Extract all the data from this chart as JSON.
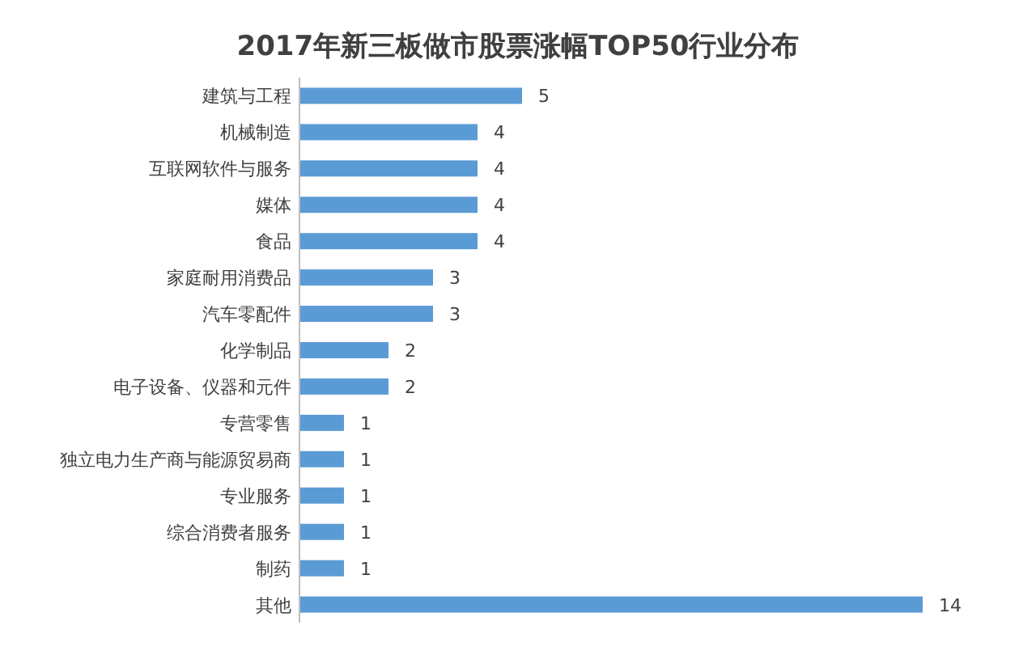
{
  "chart_data": {
    "type": "bar",
    "orientation": "horizontal",
    "title": "2017年新三板做市股票涨幅TOP50行业分布",
    "categories": [
      "建筑与工程",
      "机械制造",
      "互联网软件与服务",
      "媒体",
      "食品",
      "家庭耐用消费品",
      "汽车零配件",
      "化学制品",
      "电子设备、仪器和元件",
      "专营零售",
      "独立电力生产商与能源贸易商",
      "专业服务",
      "综合消费者服务",
      "制药",
      "其他"
    ],
    "values": [
      5,
      4,
      4,
      4,
      4,
      3,
      3,
      2,
      2,
      1,
      1,
      1,
      1,
      1,
      14
    ],
    "color": "#5b9bd5",
    "data_labels": true
  }
}
